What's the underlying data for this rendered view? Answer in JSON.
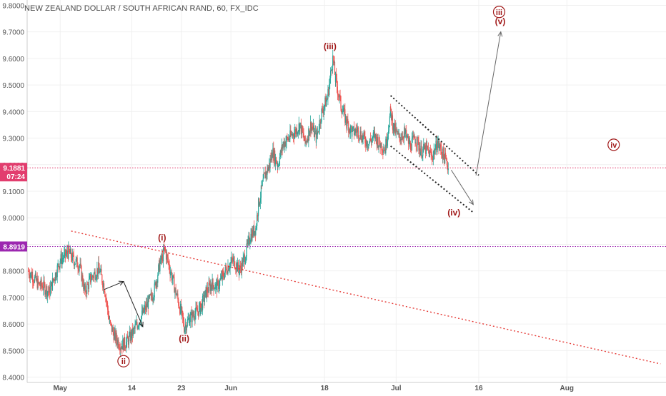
{
  "chart_data": {
    "type": "candlestick",
    "title": "NEW ZEALAND DOLLAR / SOUTH AFRICAN RAND, 60, FX_IDC",
    "ylim": [
      8.38,
      9.82
    ],
    "y_ticks": [
      "9.8000",
      "9.7000",
      "9.6000",
      "9.5000",
      "9.4000",
      "9.3000",
      "9.2000",
      "9.1000",
      "9.0000",
      "8.9000",
      "8.8000",
      "8.7000",
      "8.6000",
      "8.5000",
      "8.4000"
    ],
    "x_ticks": [
      {
        "label": "May",
        "x": 0
      },
      {
        "label": "14",
        "x": 13
      },
      {
        "label": "23",
        "x": 22
      },
      {
        "label": "Jun",
        "x": 31
      },
      {
        "label": "18",
        "x": 48
      },
      {
        "label": "Jul",
        "x": 61
      },
      {
        "label": "16",
        "x": 76
      },
      {
        "label": "Aug",
        "x": 92
      }
    ],
    "xlim": [
      -6,
      110
    ],
    "price_path": [
      [
        -5.8,
        8.8
      ],
      [
        -5,
        8.78
      ],
      [
        -4,
        8.75
      ],
      [
        -3,
        8.74
      ],
      [
        -2,
        8.72
      ],
      [
        -1,
        8.78
      ],
      [
        0,
        8.84
      ],
      [
        1.5,
        8.87
      ],
      [
        2.5,
        8.84
      ],
      [
        3.5,
        8.82
      ],
      [
        4.5,
        8.72
      ],
      [
        5.5,
        8.77
      ],
      [
        7,
        8.81
      ],
      [
        8,
        8.74
      ],
      [
        9,
        8.6
      ],
      [
        10,
        8.55
      ],
      [
        11,
        8.52
      ],
      [
        12,
        8.53
      ],
      [
        13,
        8.56
      ],
      [
        14,
        8.6
      ],
      [
        15,
        8.64
      ],
      [
        16,
        8.68
      ],
      [
        17,
        8.72
      ],
      [
        18,
        8.82
      ],
      [
        19,
        8.88
      ],
      [
        20,
        8.8
      ],
      [
        21,
        8.72
      ],
      [
        22,
        8.64
      ],
      [
        22.5,
        8.59
      ],
      [
        23.5,
        8.62
      ],
      [
        24.5,
        8.64
      ],
      [
        25.5,
        8.66
      ],
      [
        26.5,
        8.72
      ],
      [
        27.5,
        8.75
      ],
      [
        28.5,
        8.74
      ],
      [
        29.5,
        8.78
      ],
      [
        30.5,
        8.82
      ],
      [
        31.5,
        8.84
      ],
      [
        32.5,
        8.8
      ],
      [
        33.5,
        8.85
      ],
      [
        34.5,
        8.93
      ],
      [
        35.5,
        8.96
      ],
      [
        36,
        9.05
      ],
      [
        37,
        9.15
      ],
      [
        38,
        9.2
      ],
      [
        38.5,
        9.25
      ],
      [
        39.5,
        9.2
      ],
      [
        40.5,
        9.28
      ],
      [
        41.5,
        9.3
      ],
      [
        42.5,
        9.32
      ],
      [
        43.5,
        9.35
      ],
      [
        44.5,
        9.28
      ],
      [
        45.5,
        9.35
      ],
      [
        46.5,
        9.3
      ],
      [
        47.5,
        9.4
      ],
      [
        48.5,
        9.45
      ],
      [
        49.5,
        9.6
      ],
      [
        50,
        9.52
      ],
      [
        51,
        9.42
      ],
      [
        52,
        9.36
      ],
      [
        53,
        9.32
      ],
      [
        54,
        9.33
      ],
      [
        55,
        9.3
      ],
      [
        56,
        9.28
      ],
      [
        57,
        9.31
      ],
      [
        58,
        9.28
      ],
      [
        59,
        9.26
      ],
      [
        60,
        9.4
      ],
      [
        60.5,
        9.34
      ],
      [
        61.5,
        9.3
      ],
      [
        62.5,
        9.32
      ],
      [
        63.5,
        9.27
      ],
      [
        64.5,
        9.3
      ],
      [
        65.5,
        9.25
      ],
      [
        66.5,
        9.26
      ],
      [
        67.5,
        9.23
      ],
      [
        68.5,
        9.28
      ],
      [
        69.5,
        9.24
      ],
      [
        70.5,
        9.19
      ]
    ],
    "horizontal_lines": [
      {
        "price": 9.1881,
        "color": "#e23d6e",
        "label": "9.1881",
        "sublabel": "07:24"
      },
      {
        "price": 8.8919,
        "color": "#9c27b0",
        "label": "8.8919",
        "sublabel": ""
      }
    ],
    "trendlines": [
      {
        "from": [
          2,
          8.95
        ],
        "to": [
          109,
          8.45
        ],
        "color": "#e53935",
        "style": "dotted"
      },
      {
        "from": [
          60,
          9.46
        ],
        "to": [
          76,
          9.16
        ],
        "color": "#222222",
        "style": "dotted"
      },
      {
        "from": [
          60,
          9.27
        ],
        "to": [
          75,
          9.02
        ],
        "color": "#222222",
        "style": "dotted"
      }
    ],
    "arrows": [
      {
        "from": [
          8,
          8.73
        ],
        "to": [
          11.5,
          8.76
        ],
        "color": "#222222"
      },
      {
        "from": [
          11.5,
          8.76
        ],
        "to": [
          15,
          8.59
        ],
        "color": "#222222"
      },
      {
        "from": [
          71,
          9.18
        ],
        "to": [
          75,
          9.05
        ],
        "color": "#666666"
      },
      {
        "from": [
          75.5,
          9.16
        ],
        "to": [
          80,
          9.7
        ],
        "color": "#666666"
      }
    ],
    "wave_labels": [
      {
        "text": "ii",
        "x": 11.5,
        "y": 8.46,
        "circled": true
      },
      {
        "text": "(i)",
        "x": 18.5,
        "y": 8.925,
        "circled": false
      },
      {
        "text": "(ii)",
        "x": 22.5,
        "y": 8.545,
        "circled": false
      },
      {
        "text": "(iii)",
        "x": 49,
        "y": 9.645,
        "circled": false
      },
      {
        "text": "(iv)",
        "x": 71.5,
        "y": 9.02,
        "circled": false
      },
      {
        "text": "iii",
        "x": 79.7,
        "y": 9.775,
        "circled": true
      },
      {
        "text": "(v)",
        "x": 79.9,
        "y": 9.74,
        "circled": false
      },
      {
        "text": "iv",
        "x": 100.5,
        "y": 9.275,
        "circled": true
      }
    ],
    "colors": {
      "up": "#26a69a",
      "down": "#ef5350",
      "label": "#a11a1a",
      "axis_text": "#555555",
      "grid": "#f0f0f0"
    }
  }
}
